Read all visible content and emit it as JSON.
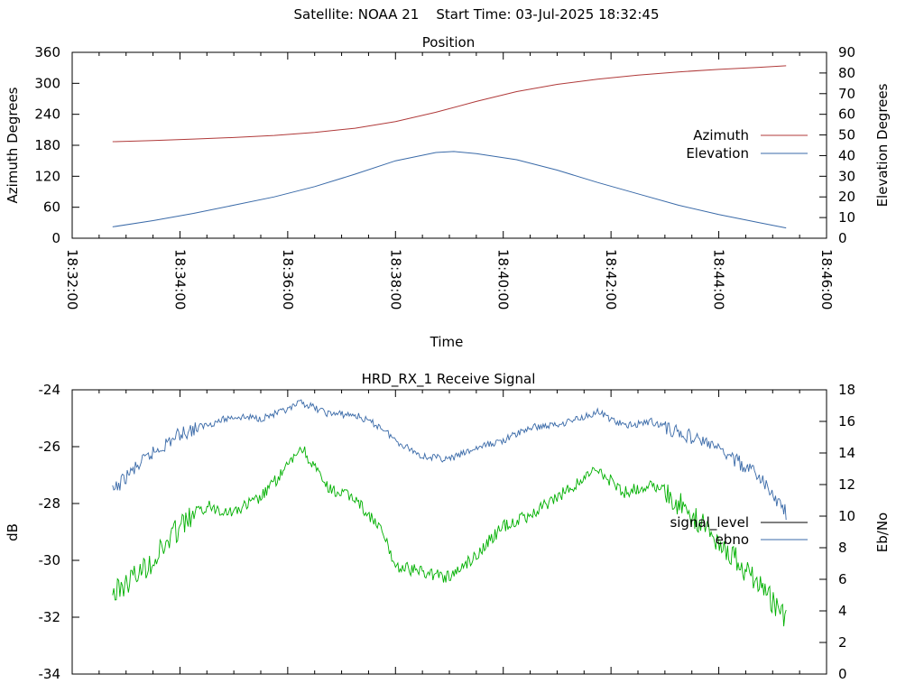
{
  "page": {
    "title": "Satellite: NOAA 21    Start Time: 03-Jul-2025 18:32:45"
  },
  "chart_data": [
    {
      "type": "line",
      "title": "Position",
      "xlabel": "Time",
      "ylabel": "Azimuth Degrees",
      "y2label": "Elevation Degrees",
      "x_ticks": [
        "18:32:00",
        "18:34:00",
        "18:36:00",
        "18:38:00",
        "18:40:00",
        "18:42:00",
        "18:44:00",
        "18:46:00"
      ],
      "y_ticks": [
        "0",
        "60",
        "120",
        "180",
        "240",
        "300",
        "360"
      ],
      "y2_ticks": [
        "0",
        "10",
        "20",
        "30",
        "40",
        "50",
        "60",
        "70",
        "80",
        "90"
      ],
      "xlim": [
        "18:32:00",
        "18:46:00"
      ],
      "ylim": [
        0,
        360
      ],
      "y2lim": [
        0,
        90
      ],
      "legend_position": "right",
      "series": [
        {
          "name": "Azimuth",
          "axis": "left",
          "color": "#b03a3a",
          "x": [
            "18:32:45",
            "18:33:30",
            "18:34:15",
            "18:35:00",
            "18:35:45",
            "18:36:30",
            "18:37:15",
            "18:38:00",
            "18:38:45",
            "18:39:30",
            "18:40:15",
            "18:41:00",
            "18:41:45",
            "18:42:30",
            "18:43:15",
            "18:44:00",
            "18:44:45",
            "18:45:15"
          ],
          "y": [
            187,
            189,
            192,
            195,
            199,
            205,
            213,
            226,
            244,
            265,
            284,
            298,
            308,
            316,
            322,
            327,
            331,
            334
          ]
        },
        {
          "name": "Elevation",
          "axis": "right",
          "color": "#3a6aa8",
          "x": [
            "18:32:45",
            "18:33:30",
            "18:34:15",
            "18:35:00",
            "18:35:45",
            "18:36:30",
            "18:37:15",
            "18:38:00",
            "18:38:45",
            "18:39:05",
            "18:39:30",
            "18:40:15",
            "18:41:00",
            "18:41:45",
            "18:42:30",
            "18:43:15",
            "18:44:00",
            "18:44:45",
            "18:45:15"
          ],
          "y": [
            5.5,
            8.5,
            12,
            16,
            20,
            25,
            31,
            37.5,
            41.5,
            42,
            41,
            38,
            33,
            27,
            21.5,
            16,
            11.5,
            7.5,
            5
          ]
        }
      ]
    },
    {
      "type": "line",
      "title": "HRD_RX_1 Receive Signal",
      "xlabel": "",
      "ylabel": "dB",
      "y2label": "Eb/No",
      "y_ticks": [
        "-34",
        "-32",
        "-30",
        "-28",
        "-26",
        "-24"
      ],
      "y2_ticks": [
        "0",
        "2",
        "4",
        "6",
        "8",
        "10",
        "12",
        "14",
        "16",
        "18"
      ],
      "xlim": [
        "18:32:00",
        "18:46:00"
      ],
      "ylim": [
        -34,
        -24
      ],
      "y2lim": [
        0,
        18
      ],
      "legend_position": "right",
      "series": [
        {
          "name": "signal_level",
          "axis": "left",
          "color": "#000000",
          "x": [],
          "y": []
        },
        {
          "name": "ebno",
          "axis": "right",
          "color": "#3a6aa8",
          "x": [
            "18:32:45",
            "18:33:00",
            "18:33:30",
            "18:34:00",
            "18:34:30",
            "18:35:00",
            "18:35:30",
            "18:36:00",
            "18:36:15",
            "18:36:45",
            "18:37:15",
            "18:37:45",
            "18:38:00",
            "18:38:30",
            "18:39:00",
            "18:39:30",
            "18:40:00",
            "18:40:30",
            "18:41:00",
            "18:41:30",
            "18:41:45",
            "18:42:15",
            "18:42:45",
            "18:43:15",
            "18:43:45",
            "18:44:15",
            "18:44:45",
            "18:45:15"
          ],
          "y": [
            11.5,
            12.5,
            14,
            15.2,
            15.8,
            16.3,
            16.2,
            16.7,
            17.2,
            16.5,
            16.4,
            15.6,
            14.8,
            13.8,
            13.6,
            14.3,
            14.8,
            15.6,
            15.8,
            16.3,
            16.6,
            15.7,
            16.0,
            15.3,
            14.7,
            13.7,
            12.5,
            10.2
          ]
        },
        {
          "name": "",
          "axis": "left",
          "color": "#00b000",
          "x": [
            "18:32:45",
            "18:33:00",
            "18:33:30",
            "18:34:00",
            "18:34:30",
            "18:35:00",
            "18:35:30",
            "18:36:00",
            "18:36:15",
            "18:36:45",
            "18:37:15",
            "18:37:45",
            "18:38:00",
            "18:38:30",
            "18:39:00",
            "18:39:30",
            "18:40:00",
            "18:40:30",
            "18:41:00",
            "18:41:30",
            "18:41:45",
            "18:42:15",
            "18:42:45",
            "18:43:15",
            "18:43:45",
            "18:44:15",
            "18:44:45",
            "18:45:15"
          ],
          "y": [
            -31.2,
            -30.8,
            -30.0,
            -28.8,
            -28.1,
            -28.3,
            -27.8,
            -26.7,
            -26.0,
            -27.5,
            -27.8,
            -29.0,
            -30.2,
            -30.4,
            -30.6,
            -29.8,
            -28.8,
            -28.4,
            -27.8,
            -27.1,
            -26.8,
            -27.6,
            -27.3,
            -28.0,
            -28.8,
            -29.8,
            -30.9,
            -32.0
          ]
        }
      ]
    }
  ]
}
